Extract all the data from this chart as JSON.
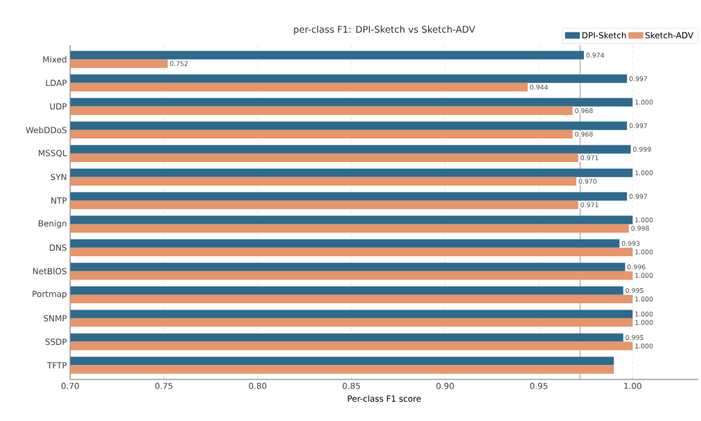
{
  "chart_data": {
    "type": "bar",
    "orientation": "horizontal",
    "title": "per-class F1: DPI-Sketch vs Sketch-ADV",
    "xlabel": "Per-class F1 score",
    "categories": [
      "Mixed",
      "LDAP",
      "UDP",
      "WebDDoS",
      "MSSQL",
      "SYN",
      "NTP",
      "Benign",
      "DNS",
      "NetBIOS",
      "Portmap",
      "SNMP",
      "SSDP",
      "TFTP"
    ],
    "series": [
      {
        "name": "DPI-Sketch",
        "color": "#2e6a8e",
        "values": [
          0.974,
          0.997,
          1.0,
          0.997,
          0.999,
          1.0,
          0.997,
          1.0,
          0.993,
          0.996,
          0.995,
          1.0,
          0.995,
          0.99
        ],
        "value_labels": [
          "0.974",
          "0.997",
          "1.000",
          "0.997",
          "0.999",
          "1.000",
          "0.997",
          "1.000",
          "0.993",
          "0.996",
          "0.995",
          "1.000",
          "0.995",
          null
        ]
      },
      {
        "name": "Sketch-ADV",
        "color": "#e8956a",
        "values": [
          0.752,
          0.944,
          0.968,
          0.968,
          0.971,
          0.97,
          0.971,
          0.998,
          1.0,
          1.0,
          1.0,
          1.0,
          1.0,
          0.99
        ],
        "value_labels": [
          "0.752",
          "0.944",
          "0.968",
          "0.968",
          "0.971",
          "0.970",
          "0.971",
          "0.998",
          "1.000",
          "1.000",
          "1.000",
          "1.000",
          "1.000",
          null
        ]
      }
    ],
    "xlim": [
      0.7,
      1.035
    ],
    "xticks": [
      {
        "value": 0.7,
        "label": "0.70"
      },
      {
        "value": 0.75,
        "label": "0.75"
      },
      {
        "value": 0.8,
        "label": "0.80"
      },
      {
        "value": 0.85,
        "label": "0.85"
      },
      {
        "value": 0.9,
        "label": "0.90"
      },
      {
        "value": 0.95,
        "label": "0.95"
      },
      {
        "value": 1.0,
        "label": "1.00"
      }
    ],
    "ref_lines": [
      {
        "axis": "x",
        "value": 0.972,
        "color": "#999999",
        "line_style": "solid"
      }
    ],
    "grid": "x",
    "legend": "top right"
  }
}
